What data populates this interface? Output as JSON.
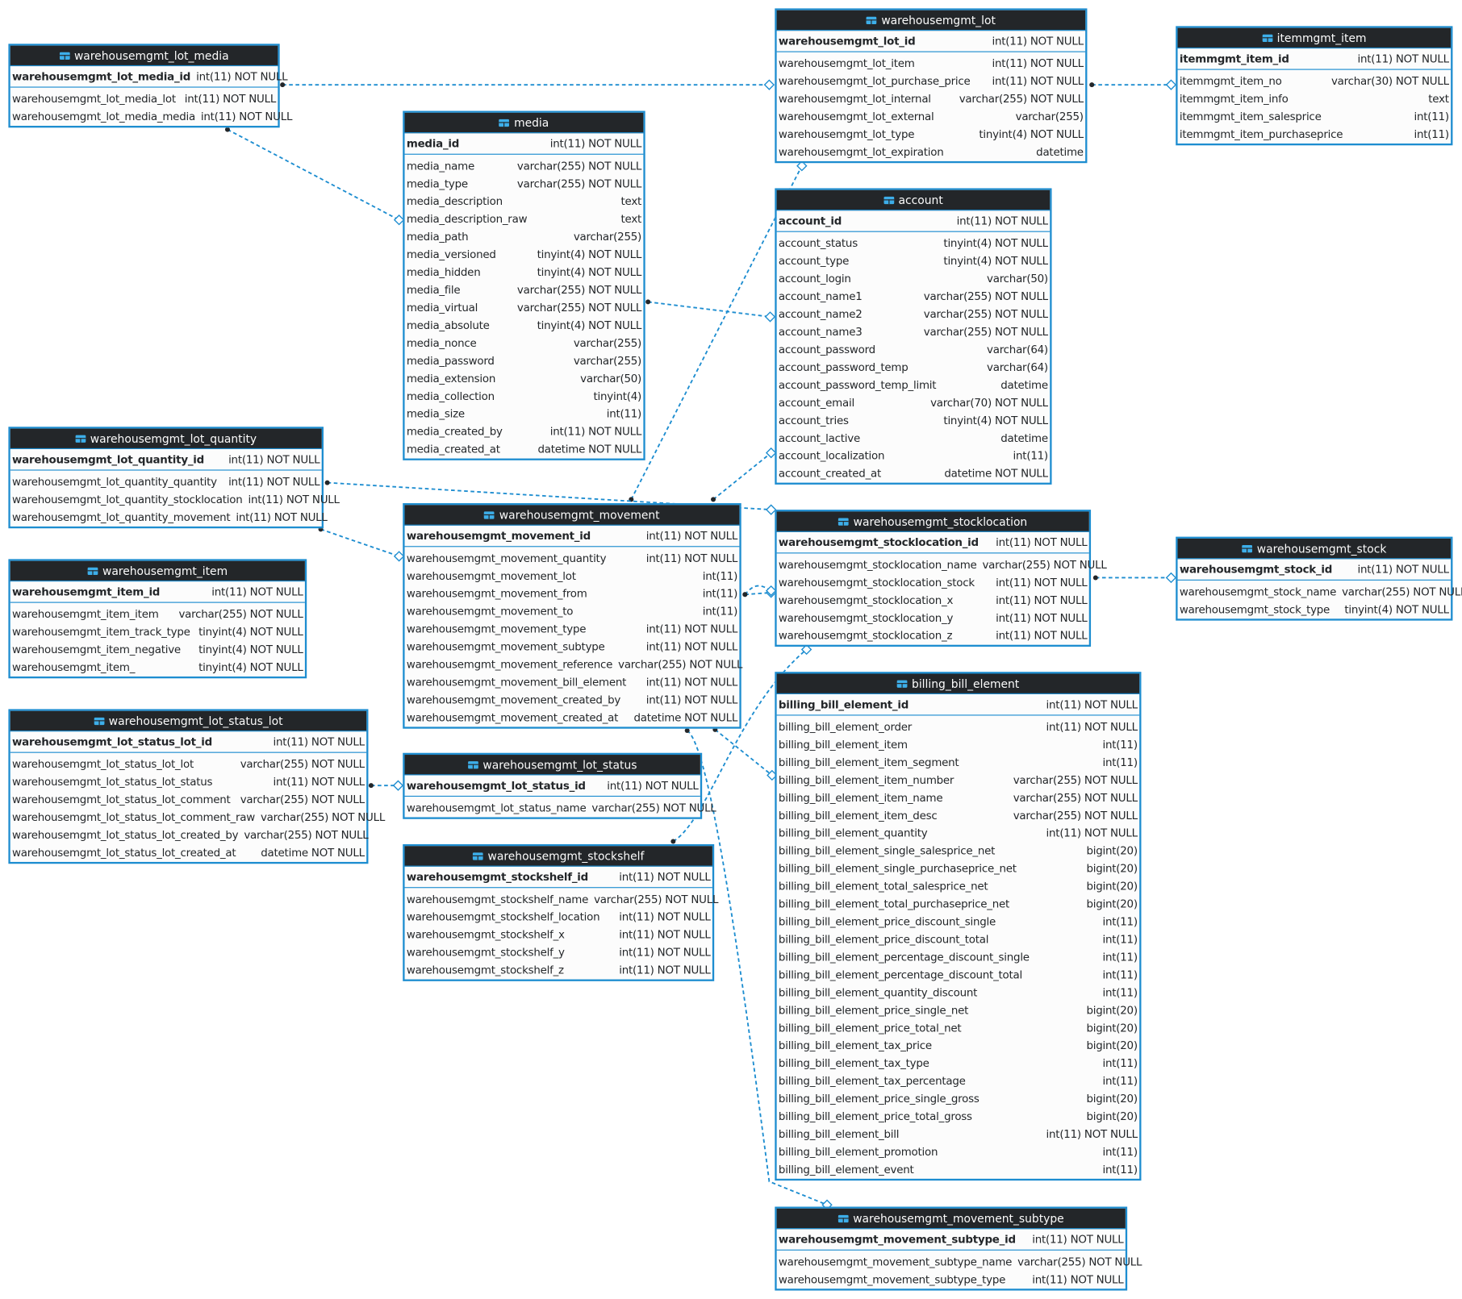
{
  "colors": {
    "border": "#1d8dd0",
    "header": "#232629",
    "body": "#fcfcfc",
    "link": "#1d8dd0",
    "icon": "#3daee9"
  },
  "tables": [
    {
      "name": "warehousemgmt_lot_media",
      "pk": {
        "name": "warehousemgmt_lot_media_id",
        "type": "int(11) NOT NULL"
      },
      "columns": [
        {
          "name": "warehousemgmt_lot_media_lot",
          "type": "int(11) NOT NULL"
        },
        {
          "name": "warehousemgmt_lot_media_media",
          "type": "int(11) NOT NULL"
        }
      ]
    },
    {
      "name": "media",
      "pk": {
        "name": "media_id",
        "type": "int(11) NOT NULL"
      },
      "columns": [
        {
          "name": "media_name",
          "type": "varchar(255) NOT NULL"
        },
        {
          "name": "media_type",
          "type": "varchar(255) NOT NULL"
        },
        {
          "name": "media_description",
          "type": "text"
        },
        {
          "name": "media_description_raw",
          "type": "text"
        },
        {
          "name": "media_path",
          "type": "varchar(255)"
        },
        {
          "name": "media_versioned",
          "type": "tinyint(4) NOT NULL"
        },
        {
          "name": "media_hidden",
          "type": "tinyint(4) NOT NULL"
        },
        {
          "name": "media_file",
          "type": "varchar(255) NOT NULL"
        },
        {
          "name": "media_virtual",
          "type": "varchar(255) NOT NULL"
        },
        {
          "name": "media_absolute",
          "type": "tinyint(4) NOT NULL"
        },
        {
          "name": "media_nonce",
          "type": "varchar(255)"
        },
        {
          "name": "media_password",
          "type": "varchar(255)"
        },
        {
          "name": "media_extension",
          "type": "varchar(50)"
        },
        {
          "name": "media_collection",
          "type": "tinyint(4)"
        },
        {
          "name": "media_size",
          "type": "int(11)"
        },
        {
          "name": "media_created_by",
          "type": "int(11) NOT NULL"
        },
        {
          "name": "media_created_at",
          "type": "datetime NOT NULL"
        }
      ]
    },
    {
      "name": "warehousemgmt_lot",
      "pk": {
        "name": "warehousemgmt_lot_id",
        "type": "int(11) NOT NULL"
      },
      "columns": [
        {
          "name": "warehousemgmt_lot_item",
          "type": "int(11) NOT NULL"
        },
        {
          "name": "warehousemgmt_lot_purchase_price",
          "type": "int(11) NOT NULL"
        },
        {
          "name": "warehousemgmt_lot_internal",
          "type": "varchar(255) NOT NULL"
        },
        {
          "name": "warehousemgmt_lot_external",
          "type": "varchar(255)"
        },
        {
          "name": "warehousemgmt_lot_type",
          "type": "tinyint(4) NOT NULL"
        },
        {
          "name": "warehousemgmt_lot_expiration",
          "type": "datetime"
        }
      ]
    },
    {
      "name": "itemmgmt_item",
      "pk": {
        "name": "itemmgmt_item_id",
        "type": "int(11) NOT NULL"
      },
      "columns": [
        {
          "name": "itemmgmt_item_no",
          "type": "varchar(30) NOT NULL"
        },
        {
          "name": "itemmgmt_item_info",
          "type": "text"
        },
        {
          "name": "itemmgmt_item_salesprice",
          "type": "int(11)"
        },
        {
          "name": "itemmgmt_item_purchaseprice",
          "type": "int(11)"
        }
      ]
    },
    {
      "name": "account",
      "pk": {
        "name": "account_id",
        "type": "int(11) NOT NULL"
      },
      "columns": [
        {
          "name": "account_status",
          "type": "tinyint(4) NOT NULL"
        },
        {
          "name": "account_type",
          "type": "tinyint(4) NOT NULL"
        },
        {
          "name": "account_login",
          "type": "varchar(50)"
        },
        {
          "name": "account_name1",
          "type": "varchar(255) NOT NULL"
        },
        {
          "name": "account_name2",
          "type": "varchar(255) NOT NULL"
        },
        {
          "name": "account_name3",
          "type": "varchar(255) NOT NULL"
        },
        {
          "name": "account_password",
          "type": "varchar(64)"
        },
        {
          "name": "account_password_temp",
          "type": "varchar(64)"
        },
        {
          "name": "account_password_temp_limit",
          "type": "datetime"
        },
        {
          "name": "account_email",
          "type": "varchar(70) NOT NULL"
        },
        {
          "name": "account_tries",
          "type": "tinyint(4) NOT NULL"
        },
        {
          "name": "account_lactive",
          "type": "datetime"
        },
        {
          "name": "account_localization",
          "type": "int(11)"
        },
        {
          "name": "account_created_at",
          "type": "datetime NOT NULL"
        }
      ]
    },
    {
      "name": "warehousemgmt_lot_quantity",
      "pk": {
        "name": "warehousemgmt_lot_quantity_id",
        "type": "int(11) NOT NULL"
      },
      "columns": [
        {
          "name": "warehousemgmt_lot_quantity_quantity",
          "type": "int(11) NOT NULL"
        },
        {
          "name": "warehousemgmt_lot_quantity_stocklocation",
          "type": "int(11) NOT NULL"
        },
        {
          "name": "warehousemgmt_lot_quantity_movement",
          "type": "int(11) NOT NULL"
        }
      ]
    },
    {
      "name": "warehousemgmt_movement",
      "pk": {
        "name": "warehousemgmt_movement_id",
        "type": "int(11) NOT NULL"
      },
      "columns": [
        {
          "name": "warehousemgmt_movement_quantity",
          "type": "int(11) NOT NULL"
        },
        {
          "name": "warehousemgmt_movement_lot",
          "type": "int(11)"
        },
        {
          "name": "warehousemgmt_movement_from",
          "type": "int(11)"
        },
        {
          "name": "warehousemgmt_movement_to",
          "type": "int(11)"
        },
        {
          "name": "warehousemgmt_movement_type",
          "type": "int(11) NOT NULL"
        },
        {
          "name": "warehousemgmt_movement_subtype",
          "type": "int(11) NOT NULL"
        },
        {
          "name": "warehousemgmt_movement_reference",
          "type": "varchar(255) NOT NULL"
        },
        {
          "name": "warehousemgmt_movement_bill_element",
          "type": "int(11) NOT NULL"
        },
        {
          "name": "warehousemgmt_movement_created_by",
          "type": "int(11) NOT NULL"
        },
        {
          "name": "warehousemgmt_movement_created_at",
          "type": "datetime NOT NULL"
        }
      ]
    },
    {
      "name": "warehousemgmt_stocklocation",
      "pk": {
        "name": "warehousemgmt_stocklocation_id",
        "type": "int(11) NOT NULL"
      },
      "columns": [
        {
          "name": "warehousemgmt_stocklocation_name",
          "type": "varchar(255) NOT NULL"
        },
        {
          "name": "warehousemgmt_stocklocation_stock",
          "type": "int(11) NOT NULL"
        },
        {
          "name": "warehousemgmt_stocklocation_x",
          "type": "int(11) NOT NULL"
        },
        {
          "name": "warehousemgmt_stocklocation_y",
          "type": "int(11) NOT NULL"
        },
        {
          "name": "warehousemgmt_stocklocation_z",
          "type": "int(11) NOT NULL"
        }
      ]
    },
    {
      "name": "warehousemgmt_stock",
      "pk": {
        "name": "warehousemgmt_stock_id",
        "type": "int(11) NOT NULL"
      },
      "columns": [
        {
          "name": "warehousemgmt_stock_name",
          "type": "varchar(255) NOT NULL"
        },
        {
          "name": "warehousemgmt_stock_type",
          "type": "tinyint(4) NOT NULL"
        }
      ]
    },
    {
      "name": "warehousemgmt_item",
      "pk": {
        "name": "warehousemgmt_item_id",
        "type": "int(11) NOT NULL"
      },
      "columns": [
        {
          "name": "warehousemgmt_item_item",
          "type": "varchar(255) NOT NULL"
        },
        {
          "name": "warehousemgmt_item_track_type",
          "type": "tinyint(4) NOT NULL"
        },
        {
          "name": "warehousemgmt_item_negative",
          "type": "tinyint(4) NOT NULL"
        },
        {
          "name": "warehousemgmt_item_",
          "type": "tinyint(4) NOT NULL"
        }
      ]
    },
    {
      "name": "warehousemgmt_lot_status_lot",
      "pk": {
        "name": "warehousemgmt_lot_status_lot_id",
        "type": "int(11) NOT NULL"
      },
      "columns": [
        {
          "name": "warehousemgmt_lot_status_lot_lot",
          "type": "varchar(255) NOT NULL"
        },
        {
          "name": "warehousemgmt_lot_status_lot_status",
          "type": "int(11) NOT NULL"
        },
        {
          "name": "warehousemgmt_lot_status_lot_comment",
          "type": "varchar(255) NOT NULL"
        },
        {
          "name": "warehousemgmt_lot_status_lot_comment_raw",
          "type": "varchar(255) NOT NULL"
        },
        {
          "name": "warehousemgmt_lot_status_lot_created_by",
          "type": "varchar(255) NOT NULL"
        },
        {
          "name": "warehousemgmt_lot_status_lot_created_at",
          "type": "datetime NOT NULL"
        }
      ]
    },
    {
      "name": "warehousemgmt_lot_status",
      "pk": {
        "name": "warehousemgmt_lot_status_id",
        "type": "int(11) NOT NULL"
      },
      "columns": [
        {
          "name": "warehousemgmt_lot_status_name",
          "type": "varchar(255) NOT NULL"
        }
      ]
    },
    {
      "name": "warehousemgmt_stockshelf",
      "pk": {
        "name": "warehousemgmt_stockshelf_id",
        "type": "int(11) NOT NULL"
      },
      "columns": [
        {
          "name": "warehousemgmt_stockshelf_name",
          "type": "varchar(255) NOT NULL"
        },
        {
          "name": "warehousemgmt_stockshelf_location",
          "type": "int(11) NOT NULL"
        },
        {
          "name": "warehousemgmt_stockshelf_x",
          "type": "int(11) NOT NULL"
        },
        {
          "name": "warehousemgmt_stockshelf_y",
          "type": "int(11) NOT NULL"
        },
        {
          "name": "warehousemgmt_stockshelf_z",
          "type": "int(11) NOT NULL"
        }
      ]
    },
    {
      "name": "billing_bill_element",
      "pk": {
        "name": "billing_bill_element_id",
        "type": "int(11) NOT NULL"
      },
      "columns": [
        {
          "name": "billing_bill_element_order",
          "type": "int(11) NOT NULL"
        },
        {
          "name": "billing_bill_element_item",
          "type": "int(11)"
        },
        {
          "name": "billing_bill_element_item_segment",
          "type": "int(11)"
        },
        {
          "name": "billing_bill_element_item_number",
          "type": "varchar(255) NOT NULL"
        },
        {
          "name": "billing_bill_element_item_name",
          "type": "varchar(255) NOT NULL"
        },
        {
          "name": "billing_bill_element_item_desc",
          "type": "varchar(255) NOT NULL"
        },
        {
          "name": "billing_bill_element_quantity",
          "type": "int(11) NOT NULL"
        },
        {
          "name": "billing_bill_element_single_salesprice_net",
          "type": "bigint(20)"
        },
        {
          "name": "billing_bill_element_single_purchaseprice_net",
          "type": "bigint(20)"
        },
        {
          "name": "billing_bill_element_total_salesprice_net",
          "type": "bigint(20)"
        },
        {
          "name": "billing_bill_element_total_purchaseprice_net",
          "type": "bigint(20)"
        },
        {
          "name": "billing_bill_element_price_discount_single",
          "type": "int(11)"
        },
        {
          "name": "billing_bill_element_price_discount_total",
          "type": "int(11)"
        },
        {
          "name": "billing_bill_element_percentage_discount_single",
          "type": "int(11)"
        },
        {
          "name": "billing_bill_element_percentage_discount_total",
          "type": "int(11)"
        },
        {
          "name": "billing_bill_element_quantity_discount",
          "type": "int(11)"
        },
        {
          "name": "billing_bill_element_price_single_net",
          "type": "bigint(20)"
        },
        {
          "name": "billing_bill_element_price_total_net",
          "type": "bigint(20)"
        },
        {
          "name": "billing_bill_element_tax_price",
          "type": "bigint(20)"
        },
        {
          "name": "billing_bill_element_tax_type",
          "type": "int(11)"
        },
        {
          "name": "billing_bill_element_tax_percentage",
          "type": "int(11)"
        },
        {
          "name": "billing_bill_element_price_single_gross",
          "type": "bigint(20)"
        },
        {
          "name": "billing_bill_element_price_total_gross",
          "type": "bigint(20)"
        },
        {
          "name": "billing_bill_element_bill",
          "type": "int(11) NOT NULL"
        },
        {
          "name": "billing_bill_element_promotion",
          "type": "int(11)"
        },
        {
          "name": "billing_bill_element_event",
          "type": "int(11)"
        }
      ]
    },
    {
      "name": "warehousemgmt_movement_subtype",
      "pk": {
        "name": "warehousemgmt_movement_subtype_id",
        "type": "int(11) NOT NULL"
      },
      "columns": [
        {
          "name": "warehousemgmt_movement_subtype_name",
          "type": "varchar(255) NOT NULL"
        },
        {
          "name": "warehousemgmt_movement_subtype_type",
          "type": "int(11) NOT NULL"
        }
      ]
    }
  ],
  "relations": [
    {
      "from": "warehousemgmt_lot_media",
      "to": "warehousemgmt_lot"
    },
    {
      "from": "warehousemgmt_lot_media",
      "to": "media"
    },
    {
      "from": "warehousemgmt_lot",
      "to": "itemmgmt_item"
    },
    {
      "from": "media",
      "to": "account"
    },
    {
      "from": "warehousemgmt_movement",
      "to": "warehousemgmt_lot"
    },
    {
      "from": "warehousemgmt_movement",
      "to": "account"
    },
    {
      "from": "warehousemgmt_lot_quantity",
      "to": "warehousemgmt_stocklocation"
    },
    {
      "from": "warehousemgmt_lot_quantity",
      "to": "warehousemgmt_movement"
    },
    {
      "from": "warehousemgmt_movement",
      "to": "warehousemgmt_stocklocation"
    },
    {
      "from": "warehousemgmt_movement",
      "to": "warehousemgmt_stocklocation"
    },
    {
      "from": "warehousemgmt_stocklocation",
      "to": "warehousemgmt_stock"
    },
    {
      "from": "warehousemgmt_lot_status_lot",
      "to": "warehousemgmt_lot_status"
    },
    {
      "from": "warehousemgmt_stockshelf",
      "to": "warehousemgmt_stocklocation"
    },
    {
      "from": "warehousemgmt_movement",
      "to": "billing_bill_element"
    },
    {
      "from": "warehousemgmt_movement",
      "to": "warehousemgmt_movement_subtype"
    }
  ]
}
